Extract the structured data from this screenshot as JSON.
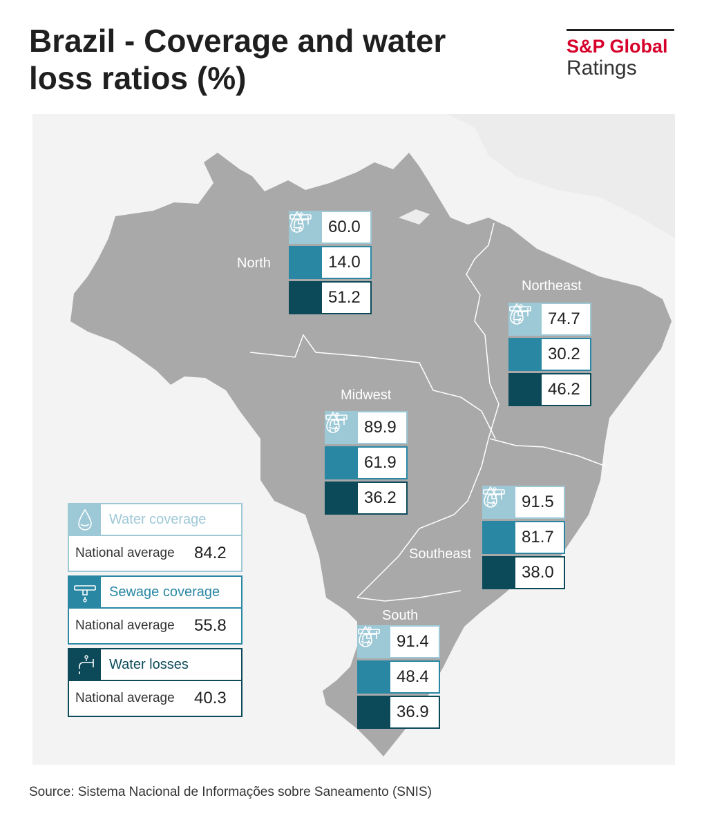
{
  "title": "Brazil - Coverage and water loss ratios (%)",
  "logo": {
    "line1": "S&P Global",
    "line2": "Ratings"
  },
  "colors": {
    "water": "#9dc8d6",
    "sewage": "#2a87a4",
    "loss": "#0c4a5a",
    "land": "#a9a9a9",
    "background": "#f3f3f3",
    "brand": "#d6002a"
  },
  "icons": {
    "water": "water-drop-icon",
    "sewage": "sewage-pipe-icon",
    "loss": "dripping-tap-icon"
  },
  "regions": [
    {
      "name": "North",
      "water": "60.0",
      "sewage": "14.0",
      "loss": "51.2"
    },
    {
      "name": "Northeast",
      "water": "74.7",
      "sewage": "30.2",
      "loss": "46.2"
    },
    {
      "name": "Midwest",
      "water": "89.9",
      "sewage": "61.9",
      "loss": "36.2"
    },
    {
      "name": "Southeast",
      "water": "91.5",
      "sewage": "81.7",
      "loss": "38.0"
    },
    {
      "name": "South",
      "water": "91.4",
      "sewage": "48.4",
      "loss": "36.9"
    }
  ],
  "legend": [
    {
      "label": "Water coverage",
      "avg_label": "National average",
      "avg": "84.2"
    },
    {
      "label": "Sewage coverage",
      "avg_label": "National average",
      "avg": "55.8"
    },
    {
      "label": "Water losses",
      "avg_label": "National average",
      "avg": "40.3"
    }
  ],
  "source": "Source: Sistema Nacional de Informações sobre Saneamento (SNIS)"
}
